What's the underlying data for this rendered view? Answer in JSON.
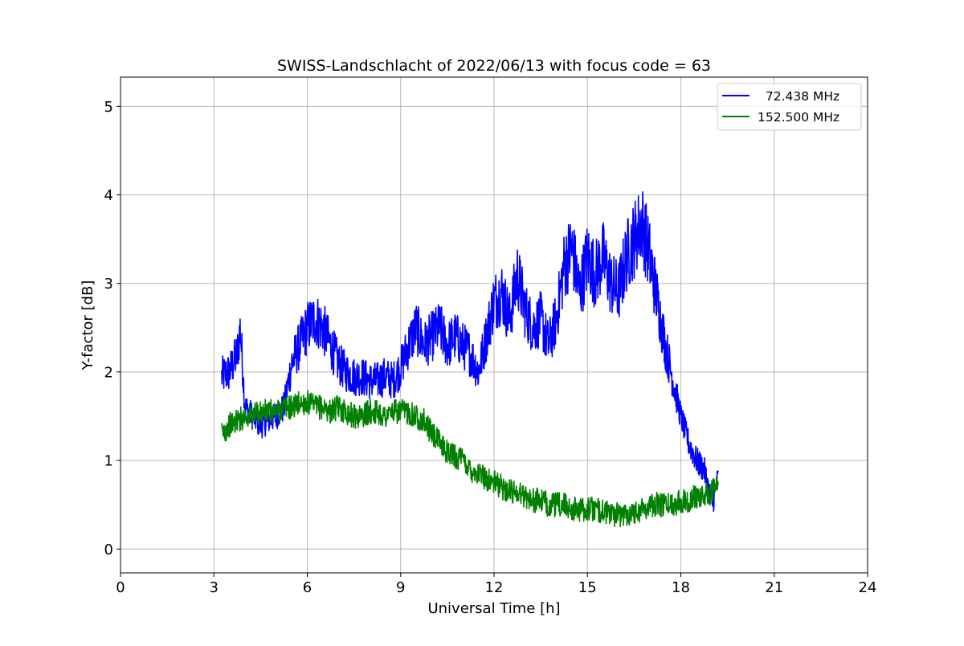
{
  "chart_data": {
    "type": "line",
    "title": "SWISS-Landschlacht of 2022/06/13 with focus code = 63",
    "xlabel": "Universal Time [h]",
    "ylabel": "Y-factor [dB]",
    "xlim": [
      0,
      24
    ],
    "ylim": [
      -0.27,
      5.33
    ],
    "xticks": [
      0,
      3,
      6,
      9,
      12,
      15,
      18,
      21,
      24
    ],
    "xtick_labels": [
      "0",
      "3",
      "6",
      "9",
      "12",
      "15",
      "18",
      "21",
      "24"
    ],
    "yticks": [
      0,
      1,
      2,
      3,
      4,
      5
    ],
    "ytick_labels": [
      "0",
      "1",
      "2",
      "3",
      "4",
      "5"
    ],
    "grid": true,
    "legend_position": "top-right",
    "series": [
      {
        "name": "  72.438 MHz",
        "color": "#0000ff",
        "x": [
          3.25,
          3.5,
          3.75,
          3.85,
          4.0,
          4.25,
          4.5,
          4.75,
          5.0,
          5.25,
          5.5,
          5.75,
          6.0,
          6.25,
          6.5,
          6.75,
          7.0,
          7.25,
          7.5,
          7.75,
          8.0,
          8.25,
          8.5,
          8.75,
          9.0,
          9.25,
          9.5,
          9.75,
          10.0,
          10.25,
          10.5,
          10.75,
          11.0,
          11.25,
          11.5,
          11.75,
          12.0,
          12.25,
          12.5,
          12.75,
          13.0,
          13.25,
          13.5,
          13.75,
          14.0,
          14.25,
          14.5,
          14.75,
          15.0,
          15.25,
          15.5,
          15.75,
          16.0,
          16.25,
          16.5,
          16.75,
          17.0,
          17.25,
          17.5,
          17.75,
          18.0,
          18.25,
          18.5,
          18.75,
          19.0,
          19.2
        ],
        "y": [
          1.95,
          2.0,
          2.2,
          2.5,
          1.6,
          1.5,
          1.4,
          1.45,
          1.5,
          1.6,
          2.1,
          2.3,
          2.5,
          2.6,
          2.5,
          2.3,
          2.1,
          2.0,
          1.95,
          1.95,
          1.9,
          1.9,
          1.95,
          1.9,
          2.05,
          2.3,
          2.5,
          2.3,
          2.4,
          2.5,
          2.3,
          2.4,
          2.3,
          2.2,
          2.0,
          2.4,
          2.8,
          2.9,
          2.6,
          3.1,
          2.7,
          2.5,
          2.6,
          2.3,
          2.6,
          3.2,
          3.4,
          2.9,
          3.3,
          3.1,
          3.3,
          3.0,
          2.9,
          3.3,
          3.5,
          3.7,
          3.3,
          2.8,
          2.3,
          1.9,
          1.5,
          1.2,
          1.0,
          0.9,
          0.5,
          0.8
        ]
      },
      {
        "name": "152.500 MHz",
        "color": "#008000",
        "x": [
          3.25,
          3.5,
          3.75,
          4.0,
          4.25,
          4.5,
          4.75,
          5.0,
          5.25,
          5.5,
          5.75,
          6.0,
          6.25,
          6.5,
          6.75,
          7.0,
          7.25,
          7.5,
          7.75,
          8.0,
          8.25,
          8.5,
          8.75,
          9.0,
          9.25,
          9.5,
          9.75,
          10.0,
          10.25,
          10.5,
          10.75,
          11.0,
          11.25,
          11.5,
          11.75,
          12.0,
          12.25,
          12.5,
          12.75,
          13.0,
          13.25,
          13.5,
          13.75,
          14.0,
          14.25,
          14.5,
          14.75,
          15.0,
          15.25,
          15.5,
          15.75,
          16.0,
          16.25,
          16.5,
          16.75,
          17.0,
          17.25,
          17.5,
          17.75,
          18.0,
          18.25,
          18.5,
          18.75,
          19.0,
          19.2
        ],
        "y": [
          1.3,
          1.4,
          1.45,
          1.5,
          1.5,
          1.55,
          1.55,
          1.55,
          1.6,
          1.6,
          1.65,
          1.65,
          1.6,
          1.6,
          1.55,
          1.6,
          1.55,
          1.5,
          1.5,
          1.55,
          1.55,
          1.5,
          1.55,
          1.55,
          1.55,
          1.5,
          1.45,
          1.3,
          1.2,
          1.1,
          1.05,
          1.0,
          0.9,
          0.85,
          0.8,
          0.75,
          0.7,
          0.65,
          0.65,
          0.6,
          0.55,
          0.55,
          0.5,
          0.5,
          0.5,
          0.45,
          0.45,
          0.45,
          0.45,
          0.42,
          0.4,
          0.38,
          0.4,
          0.42,
          0.45,
          0.5,
          0.5,
          0.5,
          0.5,
          0.55,
          0.55,
          0.6,
          0.6,
          0.65,
          0.7
        ]
      }
    ]
  }
}
